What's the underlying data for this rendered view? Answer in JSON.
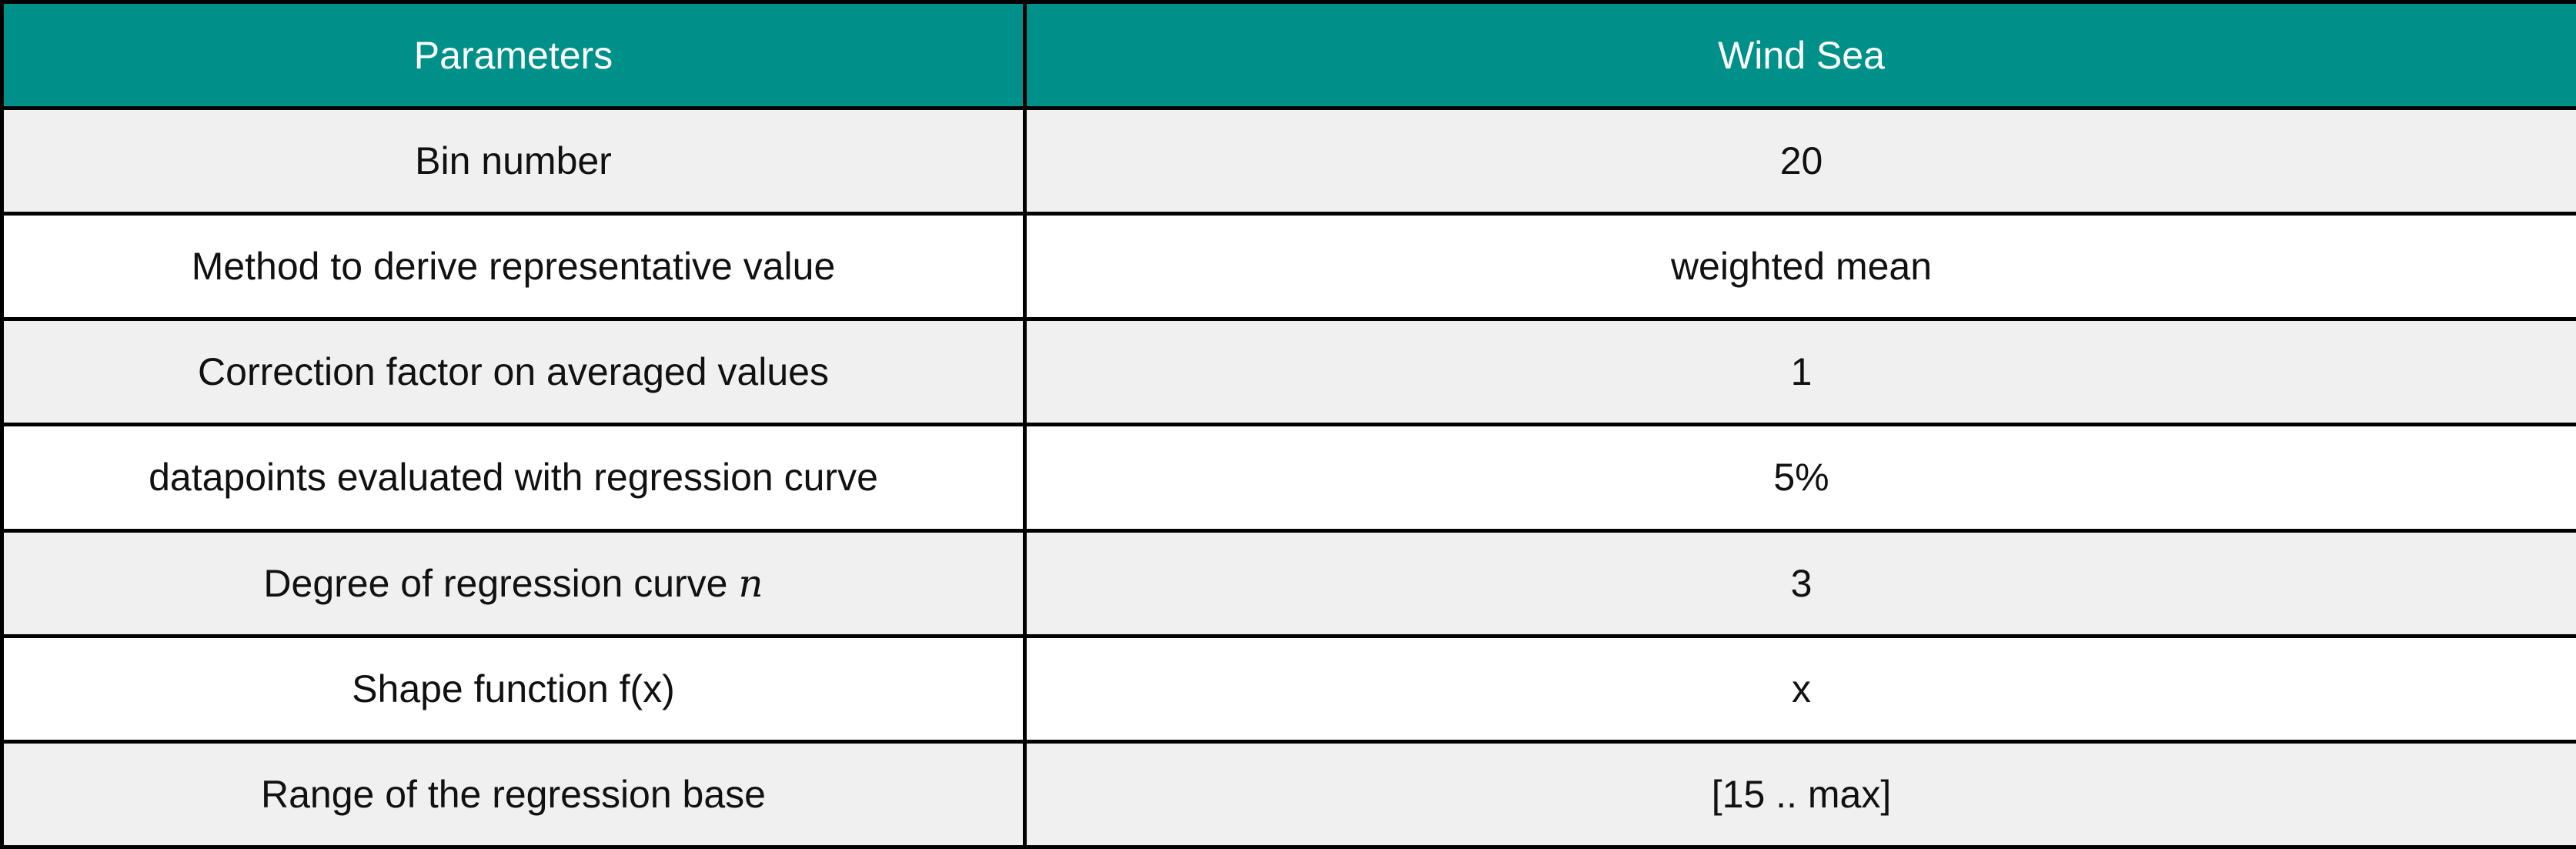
{
  "table": {
    "headers": {
      "parameters": "Parameters",
      "wind_sea": "Wind Sea"
    },
    "rows": [
      {
        "parameter": "Bin number",
        "value": "20"
      },
      {
        "parameter": "Method to derive representative value",
        "value": "weighted mean"
      },
      {
        "parameter": "Correction factor on averaged values",
        "value": "1"
      },
      {
        "parameter": "datapoints evaluated with regression curve",
        "value": "5%"
      },
      {
        "parameter": "Degree of regression curve ",
        "parameter_symbol": "n",
        "value": "3"
      },
      {
        "parameter": "Shape function f(x)",
        "value": "x"
      },
      {
        "parameter": "Range of the regression base",
        "value": "[15 .. max]"
      }
    ]
  },
  "colors": {
    "header_background": "#00908a",
    "header_text": "#ffffff",
    "shaded_row": "#f0f0f0",
    "border": "#000000"
  }
}
